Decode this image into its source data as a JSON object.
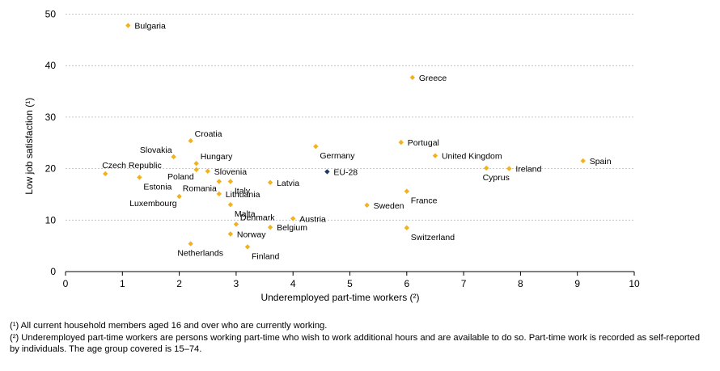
{
  "chart_data": {
    "type": "scatter",
    "xlabel": "Underemployed  part-time workers (²)",
    "ylabel": "Low job satisfaction (¹)",
    "xlim": [
      0,
      10
    ],
    "ylim": [
      0,
      50
    ],
    "xticks": [
      "0",
      "1",
      "2",
      "3",
      "4",
      "5",
      "6",
      "7",
      "8",
      "9",
      "10"
    ],
    "yticks": [
      "0",
      "10",
      "20",
      "30",
      "40",
      "50"
    ],
    "grid": "horizontal dashed",
    "marker_color": "#F2B21E",
    "highlight_color": "#1F3864",
    "points": [
      {
        "label": "Bulgaria",
        "x": 1.1,
        "y": 47.8,
        "pos": "right"
      },
      {
        "label": "Greece",
        "x": 6.1,
        "y": 37.7,
        "pos": "right"
      },
      {
        "label": "Croatia",
        "x": 2.2,
        "y": 25.4,
        "pos": "upper-right"
      },
      {
        "label": "Slovakia",
        "x": 1.9,
        "y": 22.3,
        "pos": "upper-left"
      },
      {
        "label": "Hungary",
        "x": 2.3,
        "y": 21.0,
        "pos": "upper-right"
      },
      {
        "label": "Poland",
        "x": 2.3,
        "y": 19.8,
        "pos": "lower-left"
      },
      {
        "label": "Slovenia",
        "x": 2.5,
        "y": 19.5,
        "pos": "right"
      },
      {
        "label": "Czech Republic",
        "x": 0.7,
        "y": 19.0,
        "pos": "upper-center"
      },
      {
        "label": "Estonia",
        "x": 1.3,
        "y": 18.3,
        "pos": "lower-right"
      },
      {
        "label": "Romania",
        "x": 2.7,
        "y": 17.5,
        "pos": "lower-left"
      },
      {
        "label": "Italy",
        "x": 2.9,
        "y": 17.5,
        "pos": "lower-right"
      },
      {
        "label": "Latvia",
        "x": 3.6,
        "y": 17.3,
        "pos": "right"
      },
      {
        "label": "Lithuania",
        "x": 2.7,
        "y": 15.1,
        "pos": "right"
      },
      {
        "label": "Luxembourg",
        "x": 2.0,
        "y": 14.6,
        "pos": "lower-left"
      },
      {
        "label": "Malta",
        "x": 2.9,
        "y": 13.0,
        "pos": "lower-right"
      },
      {
        "label": "Denmark",
        "x": 3.0,
        "y": 9.2,
        "pos": "upper-right"
      },
      {
        "label": "Austria",
        "x": 4.0,
        "y": 10.3,
        "pos": "right"
      },
      {
        "label": "Belgium",
        "x": 3.6,
        "y": 8.6,
        "pos": "right"
      },
      {
        "label": "Norway",
        "x": 2.9,
        "y": 7.3,
        "pos": "right"
      },
      {
        "label": "Netherlands",
        "x": 2.2,
        "y": 5.4,
        "pos": "below"
      },
      {
        "label": "Finland",
        "x": 3.2,
        "y": 4.8,
        "pos": "lower-right"
      },
      {
        "label": "Germany",
        "x": 4.4,
        "y": 24.3,
        "pos": "lower-right"
      },
      {
        "label": "EU-28",
        "x": 4.6,
        "y": 19.4,
        "pos": "right",
        "highlight": true
      },
      {
        "label": "Portugal",
        "x": 5.9,
        "y": 25.1,
        "pos": "right"
      },
      {
        "label": "United Kingdom",
        "x": 6.5,
        "y": 22.5,
        "pos": "right"
      },
      {
        "label": "France",
        "x": 6.0,
        "y": 15.6,
        "pos": "lower-right"
      },
      {
        "label": "Sweden",
        "x": 5.3,
        "y": 12.9,
        "pos": "right"
      },
      {
        "label": "Switzerland",
        "x": 6.0,
        "y": 8.5,
        "pos": "lower-right"
      },
      {
        "label": "Cyprus",
        "x": 7.4,
        "y": 20.1,
        "pos": "below"
      },
      {
        "label": "Ireland",
        "x": 7.8,
        "y": 20.0,
        "pos": "right"
      },
      {
        "label": "Spain",
        "x": 9.1,
        "y": 21.5,
        "pos": "right"
      }
    ]
  },
  "footnotes": [
    "(¹) All current household members aged 16 and over who are currently working.",
    "(²) Underemployed part-time workers  are persons working part-time who wish to work additional hours and are available to do so. Part-time work is recorded as self-reported by individuals. The age group covered is 15–74."
  ]
}
